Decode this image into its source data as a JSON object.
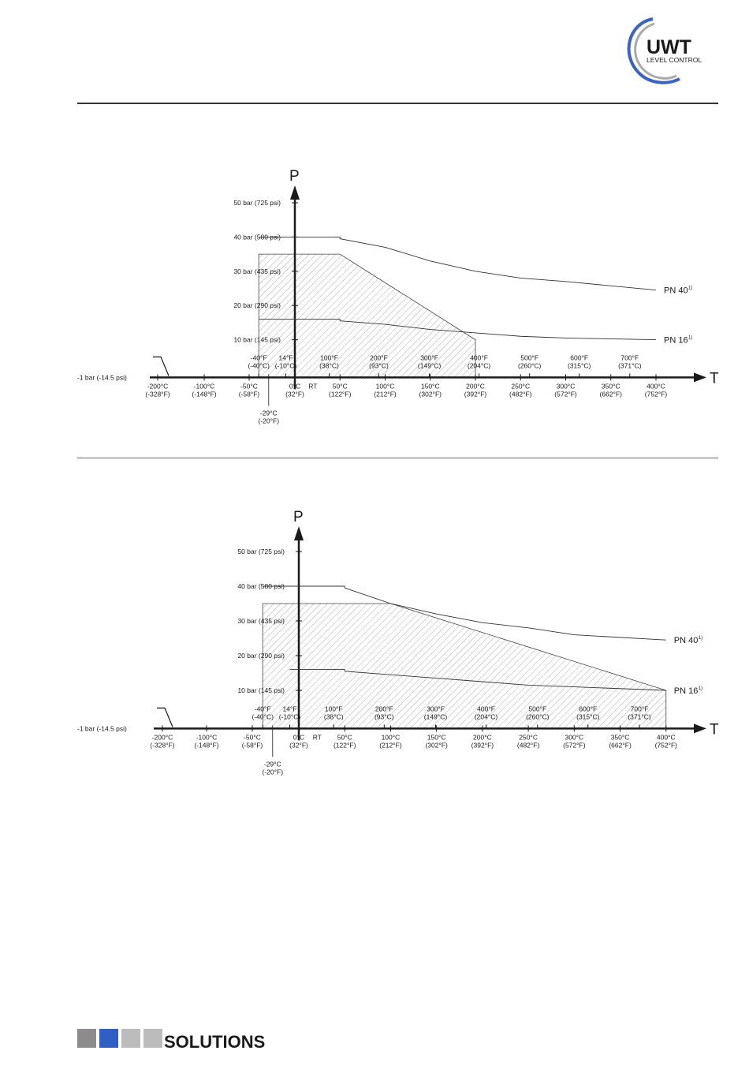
{
  "brand": {
    "logo_text": "UWT",
    "logo_sub": "LEVEL CONTROL",
    "footer_text": "SOLUTIONS"
  },
  "colors": {
    "logo_blue": "#3b63c4",
    "logo_grey": "#a7a9ac",
    "footer_squares": [
      "#8c8c8c",
      "#2f5fc4",
      "#bcbcbc",
      "#bcbcbc"
    ],
    "hatch": "#9a9a9a",
    "axis": "#1a1a1a"
  },
  "chart_data": [
    {
      "type": "line",
      "x_axis_label": "T",
      "y_axis_label": "P",
      "y_ticks": [
        {
          "v": 50,
          "label": "50 bar (725 psi)"
        },
        {
          "v": 40,
          "label": "40 bar (580 psi)"
        },
        {
          "v": 30,
          "label": "30 bar (435 psi)"
        },
        {
          "v": 20,
          "label": "20 bar (290 psi)"
        },
        {
          "v": 10,
          "label": "10 bar (145 psi)"
        }
      ],
      "baseline_label": "-1 bar (-14.5 psi)",
      "c_ticks": [
        {
          "t": -200,
          "l1": "-200°C",
          "l2": "(-328°F)"
        },
        {
          "t": -100,
          "l1": "-100°C",
          "l2": "(-148°F)"
        },
        {
          "t": -50,
          "l1": "-50°C",
          "l2": "(-58°F)"
        },
        {
          "t": 0,
          "l1": "0°C",
          "l2": "(32°F)"
        },
        {
          "t": 50,
          "l1": "50°C",
          "l2": "(122°F)"
        },
        {
          "t": 100,
          "l1": "100°C",
          "l2": "(212°F)"
        },
        {
          "t": 150,
          "l1": "150°C",
          "l2": "(302°F)"
        },
        {
          "t": 200,
          "l1": "200°C",
          "l2": "(392°F)"
        },
        {
          "t": 250,
          "l1": "250°C",
          "l2": "(482°F)"
        },
        {
          "t": 300,
          "l1": "300°C",
          "l2": "(572°F)"
        },
        {
          "t": 350,
          "l1": "350°C",
          "l2": "(662°F)"
        },
        {
          "t": 400,
          "l1": "400°C",
          "l2": "(752°F)"
        }
      ],
      "f_ticks": [
        {
          "t": -40,
          "l1": "-40°F",
          "l2": "(-40°C)"
        },
        {
          "t": -10,
          "l1": "14°F",
          "l2": "(-10°C)"
        },
        {
          "t": 38,
          "l1": "100°F",
          "l2": "(38°C)"
        },
        {
          "t": 93,
          "l1": "200°F",
          "l2": "(93°C)"
        },
        {
          "t": 149,
          "l1": "300°F",
          "l2": "(149°C)"
        },
        {
          "t": 204,
          "l1": "400°F",
          "l2": "(204°C)"
        },
        {
          "t": 260,
          "l1": "500°F",
          "l2": "(260°C)"
        },
        {
          "t": 315,
          "l1": "600°F",
          "l2": "(315°C)"
        },
        {
          "t": 371,
          "l1": "700°F",
          "l2": "(371°C)"
        }
      ],
      "special_ticks": [
        {
          "t": -29,
          "l1": "-29°C",
          "l2": "(-20°F)"
        },
        {
          "t": 20,
          "l1": "RT",
          "l2": ""
        }
      ],
      "series": [
        {
          "name": "PN 40",
          "sup": "1)",
          "points": [
            [
              -40,
              40
            ],
            [
              50,
              40
            ],
            [
              50,
              39.5
            ],
            [
              100,
              37
            ],
            [
              150,
              33
            ],
            [
              200,
              30
            ],
            [
              250,
              28
            ],
            [
              300,
              27
            ],
            [
              400,
              24.5
            ]
          ]
        },
        {
          "name": "PN 16",
          "sup": "1)",
          "points": [
            [
              -40,
              16
            ],
            [
              50,
              16
            ],
            [
              50,
              15.5
            ],
            [
              100,
              14.5
            ],
            [
              150,
              13
            ],
            [
              200,
              12
            ],
            [
              250,
              11
            ],
            [
              300,
              10.5
            ],
            [
              400,
              10
            ]
          ]
        }
      ],
      "hatched_region": [
        [
          -40,
          -1
        ],
        [
          -40,
          35
        ],
        [
          50,
          35
        ],
        [
          200,
          10
        ],
        [
          200,
          -1
        ]
      ]
    },
    {
      "type": "line",
      "x_axis_label": "T",
      "y_axis_label": "P",
      "y_ticks": [
        {
          "v": 50,
          "label": "50 bar (725 psi)"
        },
        {
          "v": 40,
          "label": "40 bar (580 psi)"
        },
        {
          "v": 30,
          "label": "30 bar (435 psi)"
        },
        {
          "v": 20,
          "label": "20 bar (290 psi)"
        },
        {
          "v": 10,
          "label": "10 bar (145 psi)"
        }
      ],
      "baseline_label": "-1 bar (-14.5 psi)",
      "c_ticks": [
        {
          "t": -200,
          "l1": "-200°C",
          "l2": "(-328°F)"
        },
        {
          "t": -100,
          "l1": "-100°C",
          "l2": "(-148°F)"
        },
        {
          "t": -50,
          "l1": "-50°C",
          "l2": "(-58°F)"
        },
        {
          "t": 0,
          "l1": "0°C",
          "l2": "(32°F)"
        },
        {
          "t": 50,
          "l1": "50°C",
          "l2": "(122°F)"
        },
        {
          "t": 100,
          "l1": "100°C",
          "l2": "(212°F)"
        },
        {
          "t": 150,
          "l1": "150°C",
          "l2": "(302°F)"
        },
        {
          "t": 200,
          "l1": "200°C",
          "l2": "(392°F)"
        },
        {
          "t": 250,
          "l1": "250°C",
          "l2": "(482°F)"
        },
        {
          "t": 300,
          "l1": "300°C",
          "l2": "(572°F)"
        },
        {
          "t": 350,
          "l1": "350°C",
          "l2": "(662°F)"
        },
        {
          "t": 400,
          "l1": "400°C",
          "l2": "(752°F)"
        }
      ],
      "f_ticks": [
        {
          "t": -40,
          "l1": "-40°F",
          "l2": "(-40°C)"
        },
        {
          "t": -10,
          "l1": "14°F",
          "l2": "(-10°C)"
        },
        {
          "t": 38,
          "l1": "100°F",
          "l2": "(38°C)"
        },
        {
          "t": 93,
          "l1": "200°F",
          "l2": "(93°C)"
        },
        {
          "t": 149,
          "l1": "300°F",
          "l2": "(149°C)"
        },
        {
          "t": 204,
          "l1": "400°F",
          "l2": "(204°C)"
        },
        {
          "t": 260,
          "l1": "500°F",
          "l2": "(260°C)"
        },
        {
          "t": 315,
          "l1": "600°F",
          "l2": "(315°C)"
        },
        {
          "t": 371,
          "l1": "700°F",
          "l2": "(371°C)"
        }
      ],
      "special_ticks": [
        {
          "t": -29,
          "l1": "-29°C",
          "l2": "(-20°F)"
        },
        {
          "t": 20,
          "l1": "RT",
          "l2": ""
        }
      ],
      "series": [
        {
          "name": "PN 40",
          "sup": "1)",
          "points": [
            [
              -40,
              40
            ],
            [
              50,
              40
            ],
            [
              50,
              39.5
            ],
            [
              100,
              35
            ],
            [
              150,
              32
            ],
            [
              200,
              29.5
            ],
            [
              250,
              28
            ],
            [
              300,
              26
            ],
            [
              400,
              24.5
            ]
          ]
        },
        {
          "name": "PN 16",
          "sup": "1)",
          "points": [
            [
              -10,
              16
            ],
            [
              50,
              16
            ],
            [
              50,
              15.5
            ],
            [
              100,
              14.5
            ],
            [
              150,
              13.5
            ],
            [
              200,
              12.5
            ],
            [
              250,
              11.5
            ],
            [
              300,
              11
            ],
            [
              400,
              10
            ]
          ]
        }
      ],
      "hatched_region": [
        [
          -40,
          -1
        ],
        [
          -40,
          35
        ],
        [
          100,
          35
        ],
        [
          400,
          10
        ],
        [
          400,
          -1
        ]
      ]
    }
  ]
}
